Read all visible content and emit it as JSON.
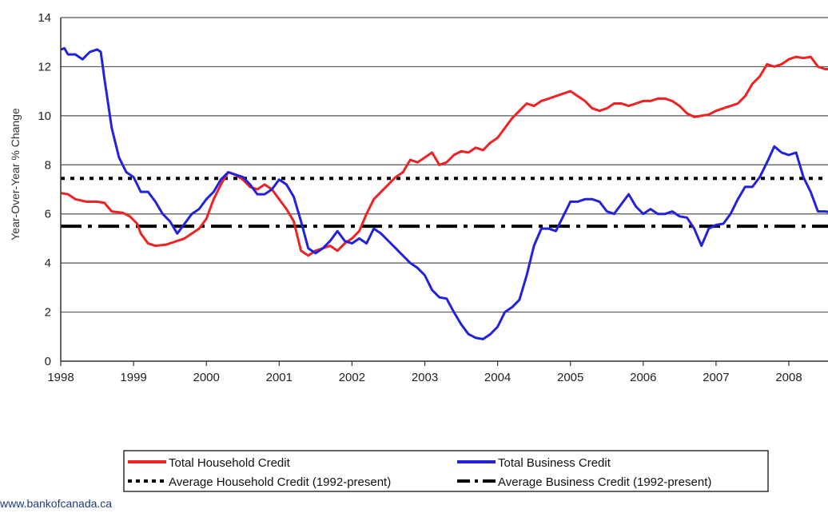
{
  "chart_data": {
    "type": "line",
    "title": "",
    "ylabel": "Year-Over-Year % Change",
    "xlabel": "",
    "ylim": [
      0,
      14
    ],
    "xlim": [
      1998.0,
      2008.6
    ],
    "y_ticks": [
      "0",
      "2",
      "4",
      "6",
      "8",
      "10",
      "12",
      "14"
    ],
    "x_ticks": [
      "1998",
      "1999",
      "2000",
      "2001",
      "2002",
      "2003",
      "2004",
      "2005",
      "2006",
      "2007",
      "2008"
    ],
    "grid": "horizontal",
    "legend_position": "bottom",
    "series": [
      {
        "name": "Total Household Credit",
        "color": "#ee2222",
        "style": "solid",
        "x": [
          1998.0,
          1998.1,
          1998.2,
          1998.35,
          1998.5,
          1998.6,
          1998.7,
          1998.85,
          1998.95,
          1999.05,
          1999.1,
          1999.2,
          1999.3,
          1999.45,
          1999.55,
          1999.7,
          1999.8,
          1999.9,
          2000.0,
          2000.1,
          2000.2,
          2000.3,
          2000.4,
          2000.5,
          2000.6,
          2000.7,
          2000.8,
          2000.9,
          2001.0,
          2001.1,
          2001.2,
          2001.3,
          2001.4,
          2001.5,
          2001.6,
          2001.7,
          2001.8,
          2001.9,
          2002.0,
          2002.1,
          2002.2,
          2002.3,
          2002.4,
          2002.5,
          2002.6,
          2002.7,
          2002.8,
          2002.9,
          2003.0,
          2003.1,
          2003.2,
          2003.3,
          2003.4,
          2003.5,
          2003.6,
          2003.7,
          2003.8,
          2003.9,
          2004.0,
          2004.1,
          2004.2,
          2004.3,
          2004.4,
          2004.5,
          2004.6,
          2004.7,
          2004.8,
          2004.9,
          2005.0,
          2005.1,
          2005.2,
          2005.3,
          2005.4,
          2005.5,
          2005.6,
          2005.7,
          2005.8,
          2005.9,
          2006.0,
          2006.1,
          2006.2,
          2006.3,
          2006.4,
          2006.5,
          2006.6,
          2006.7,
          2006.8,
          2006.9,
          2007.0,
          2007.1,
          2007.2,
          2007.3,
          2007.4,
          2007.5,
          2007.6,
          2007.7,
          2007.8,
          2007.9,
          2008.0,
          2008.1,
          2008.2,
          2008.3,
          2008.4,
          2008.5,
          2008.6
        ],
        "y": [
          6.85,
          6.8,
          6.6,
          6.5,
          6.5,
          6.45,
          6.1,
          6.05,
          5.9,
          5.6,
          5.2,
          4.8,
          4.7,
          4.75,
          4.85,
          5.0,
          5.2,
          5.4,
          5.8,
          6.6,
          7.2,
          7.7,
          7.6,
          7.4,
          7.1,
          7.0,
          7.2,
          7.0,
          6.6,
          6.2,
          5.7,
          4.5,
          4.3,
          4.5,
          4.6,
          4.7,
          4.5,
          4.8,
          5.0,
          5.3,
          6.0,
          6.6,
          6.9,
          7.2,
          7.5,
          7.7,
          8.2,
          8.1,
          8.3,
          8.5,
          8.0,
          8.1,
          8.4,
          8.55,
          8.5,
          8.7,
          8.6,
          8.9,
          9.1,
          9.5,
          9.9,
          10.2,
          10.5,
          10.4,
          10.6,
          10.7,
          10.8,
          10.9,
          11.0,
          10.8,
          10.6,
          10.3,
          10.2,
          10.3,
          10.5,
          10.5,
          10.4,
          10.5,
          10.6,
          10.6,
          10.7,
          10.7,
          10.6,
          10.4,
          10.1,
          9.95,
          10.0,
          10.05,
          10.2,
          10.3,
          10.4,
          10.5,
          10.8,
          11.3,
          11.6,
          12.1,
          12.0,
          12.1,
          12.3,
          12.4,
          12.35,
          12.4,
          12.0,
          11.9,
          11.9
        ]
      },
      {
        "name": "Total Business Credit",
        "color": "#2222dd",
        "style": "solid",
        "x": [
          1998.0,
          1998.05,
          1998.1,
          1998.2,
          1998.3,
          1998.4,
          1998.5,
          1998.55,
          1998.6,
          1998.7,
          1998.8,
          1998.9,
          1999.0,
          1999.1,
          1999.2,
          1999.3,
          1999.4,
          1999.5,
          1999.6,
          1999.7,
          1999.8,
          1999.9,
          2000.0,
          2000.1,
          2000.2,
          2000.3,
          2000.4,
          2000.5,
          2000.6,
          2000.7,
          2000.8,
          2000.9,
          2001.0,
          2001.1,
          2001.2,
          2001.3,
          2001.4,
          2001.5,
          2001.6,
          2001.7,
          2001.8,
          2001.9,
          2002.0,
          2002.1,
          2002.2,
          2002.3,
          2002.4,
          2002.5,
          2002.6,
          2002.7,
          2002.8,
          2002.9,
          2003.0,
          2003.1,
          2003.2,
          2003.3,
          2003.4,
          2003.5,
          2003.6,
          2003.7,
          2003.8,
          2003.9,
          2004.0,
          2004.1,
          2004.2,
          2004.3,
          2004.4,
          2004.5,
          2004.6,
          2004.7,
          2004.8,
          2004.9,
          2005.0,
          2005.1,
          2005.2,
          2005.3,
          2005.4,
          2005.5,
          2005.6,
          2005.7,
          2005.8,
          2005.9,
          2006.0,
          2006.1,
          2006.2,
          2006.3,
          2006.4,
          2006.5,
          2006.6,
          2006.7,
          2006.8,
          2006.9,
          2007.0,
          2007.1,
          2007.2,
          2007.3,
          2007.4,
          2007.5,
          2007.6,
          2007.7,
          2007.8,
          2007.9,
          2008.0,
          2008.1,
          2008.2,
          2008.3,
          2008.4,
          2008.5,
          2008.6
        ],
        "y": [
          12.7,
          12.75,
          12.5,
          12.5,
          12.3,
          12.6,
          12.7,
          12.6,
          11.5,
          9.5,
          8.3,
          7.7,
          7.5,
          6.9,
          6.9,
          6.5,
          6.0,
          5.7,
          5.2,
          5.6,
          6.0,
          6.2,
          6.6,
          6.9,
          7.4,
          7.7,
          7.6,
          7.5,
          7.2,
          6.8,
          6.8,
          7.0,
          7.4,
          7.2,
          6.7,
          5.7,
          4.6,
          4.4,
          4.6,
          4.9,
          5.3,
          4.9,
          4.8,
          5.0,
          4.8,
          5.4,
          5.2,
          4.9,
          4.6,
          4.3,
          4.0,
          3.8,
          3.5,
          2.9,
          2.6,
          2.55,
          2.0,
          1.5,
          1.1,
          0.95,
          0.9,
          1.1,
          1.4,
          2.0,
          2.2,
          2.5,
          3.5,
          4.7,
          5.4,
          5.4,
          5.3,
          5.9,
          6.5,
          6.5,
          6.6,
          6.6,
          6.5,
          6.1,
          6.0,
          6.4,
          6.8,
          6.3,
          6.0,
          6.2,
          6.0,
          6.0,
          6.1,
          5.9,
          5.85,
          5.4,
          4.7,
          5.4,
          5.55,
          5.6,
          6.0,
          6.6,
          7.1,
          7.1,
          7.5,
          8.1,
          8.75,
          8.5,
          8.4,
          8.5,
          7.5,
          6.9,
          6.1,
          6.1,
          6.05
        ]
      },
      {
        "name": "Average Household Credit (1992-present)",
        "color": "#000000",
        "style": "dotted",
        "x": [
          1998.0,
          2008.6
        ],
        "y": [
          7.45,
          7.45
        ]
      },
      {
        "name": "Average Business Credit (1992-present)",
        "color": "#000000",
        "style": "dashdot",
        "x": [
          1998.0,
          2008.6
        ],
        "y": [
          5.5,
          5.5
        ]
      }
    ]
  },
  "source_note": "www.bankofcanada.ca"
}
